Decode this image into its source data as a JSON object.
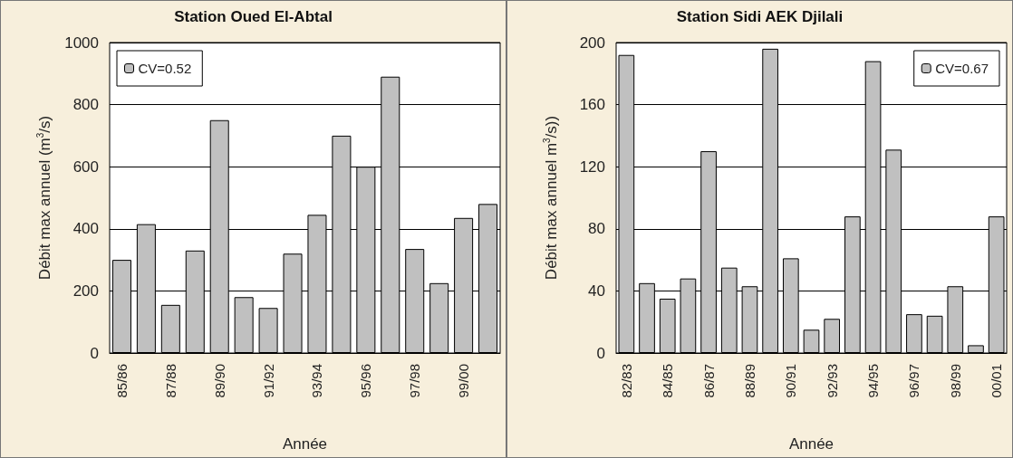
{
  "chart_data": [
    {
      "type": "bar",
      "title": "Station Oued El-Abtal",
      "xlabel": "Année",
      "ylabel": "Débit max annuel (m$^{3}$/s)",
      "categories": [
        "85/86",
        null,
        "87/88",
        null,
        "89/90",
        null,
        "91/92",
        null,
        "93/94",
        null,
        "95/96",
        null,
        "97/98",
        null,
        "99/00",
        null
      ],
      "series": [
        {
          "name": "CV=0.52",
          "color": "#c0c0c0",
          "values": [
            300,
            415,
            155,
            330,
            750,
            180,
            145,
            320,
            445,
            700,
            600,
            890,
            335,
            225,
            435,
            480
          ]
        }
      ],
      "ylim": [
        0,
        1000
      ],
      "yticks": [
        0,
        200,
        400,
        600,
        800,
        1000
      ],
      "grid": "y",
      "legend": "top left"
    },
    {
      "type": "bar",
      "title": "Station Sidi AEK Djilali",
      "xlabel": "Année",
      "ylabel": "Débit max annuel m$^{3}$/s))",
      "categories": [
        "82/83",
        null,
        "84/85",
        null,
        "86/87",
        null,
        "88/89",
        null,
        "90/91",
        null,
        "92/93",
        null,
        "94/95",
        null,
        "96/97",
        null,
        "98/99",
        null,
        "00/01"
      ],
      "series": [
        {
          "name": "CV=0.67",
          "color": "#c0c0c0",
          "values": [
            192,
            45,
            35,
            48,
            130,
            55,
            43,
            196,
            61,
            15,
            22,
            88,
            188,
            131,
            25,
            24,
            43,
            5,
            88
          ]
        }
      ],
      "ylim": [
        0,
        200
      ],
      "yticks": [
        0,
        40,
        80,
        120,
        160,
        200
      ],
      "grid": "y",
      "legend": "top right"
    }
  ]
}
